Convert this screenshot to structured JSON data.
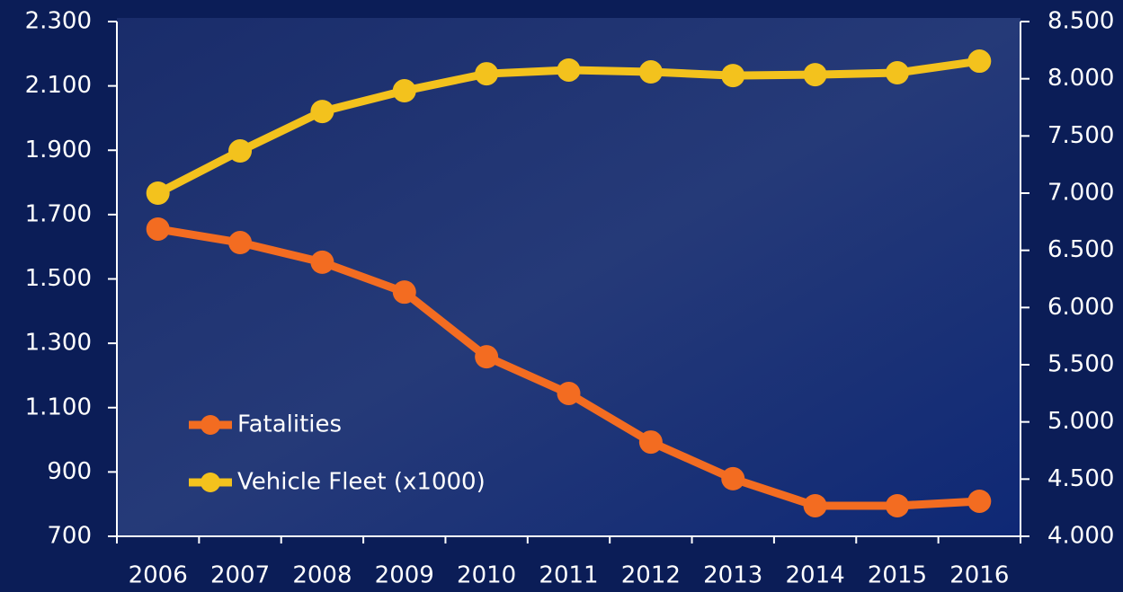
{
  "chart_data": {
    "type": "line",
    "categories": [
      "2006",
      "2007",
      "2008",
      "2009",
      "2010",
      "2011",
      "2012",
      "2013",
      "2014",
      "2015",
      "2016"
    ],
    "series": [
      {
        "name": "Fatalities",
        "color": "#f36c21",
        "values": [
          1655,
          1613,
          1552,
          1459,
          1258,
          1144,
          993,
          879,
          795,
          795,
          809
        ]
      },
      {
        "name": "Vehicle Fleet (x1000)",
        "color": "#f3c21d",
        "axis": "y2",
        "values": [
          7000,
          7369,
          7714,
          7895,
          8044,
          8076,
          8060,
          8028,
          8036,
          8052,
          8154
        ]
      }
    ],
    "ylim": [
      700,
      2300
    ],
    "yticks": [
      700,
      900,
      {
        "value": 1100,
        "label": "1.100"
      },
      {
        "value": 1300,
        "label": "1.300"
      },
      {
        "value": 1500,
        "label": "1.500"
      },
      {
        "value": 1700,
        "label": "1.700"
      },
      {
        "value": 1900,
        "label": "1.900"
      },
      {
        "value": 2100,
        "label": "2.100"
      },
      {
        "value": 2300,
        "label": "2.300"
      }
    ],
    "y2lim": [
      4000,
      8500
    ],
    "y2ticks": [
      {
        "value": 4000,
        "label": "4.000"
      },
      {
        "value": 4500,
        "label": "4.500"
      },
      {
        "value": 5000,
        "label": "5.000"
      },
      {
        "value": 5500,
        "label": "5.500"
      },
      {
        "value": 6000,
        "label": "6.000"
      },
      {
        "value": 6500,
        "label": "6.500"
      },
      {
        "value": 7000,
        "label": "7.000"
      },
      {
        "value": 7500,
        "label": "7.500"
      },
      {
        "value": 8000,
        "label": "8.000"
      },
      {
        "value": 8500,
        "label": "8.500"
      }
    ],
    "legend": "lower-left"
  }
}
